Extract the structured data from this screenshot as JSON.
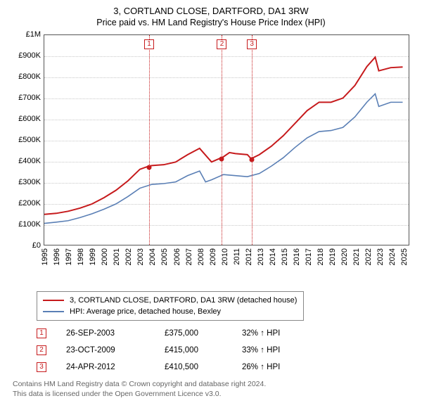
{
  "title": "3, CORTLAND CLOSE, DARTFORD, DA1 3RW",
  "subtitle": "Price paid vs. HM Land Registry's House Price Index (HPI)",
  "chart": {
    "type": "line",
    "xlim": [
      1995,
      2025.5
    ],
    "ylim": [
      0,
      1000000
    ],
    "yticks": [
      0,
      100000,
      200000,
      300000,
      400000,
      500000,
      600000,
      700000,
      800000,
      900000,
      1000000
    ],
    "ytick_labels": [
      "£0",
      "£100K",
      "£200K",
      "£300K",
      "£400K",
      "£500K",
      "£600K",
      "£700K",
      "£800K",
      "£900K",
      "£1M"
    ],
    "xticks": [
      1995,
      1996,
      1997,
      1998,
      1999,
      2000,
      2001,
      2002,
      2003,
      2004,
      2005,
      2006,
      2007,
      2008,
      2009,
      2010,
      2011,
      2012,
      2013,
      2014,
      2015,
      2016,
      2017,
      2018,
      2019,
      2020,
      2021,
      2022,
      2023,
      2024,
      2025
    ],
    "grid_color": "#c8c8c8",
    "border_color": "#555555",
    "background": "#ffffff",
    "series": [
      {
        "name": "price_line",
        "label": "3, CORTLAND CLOSE, DARTFORD, DA1 3RW (detached house)",
        "color": "#c61a1c",
        "width": 2,
        "points": [
          [
            1995,
            145000
          ],
          [
            1996,
            150000
          ],
          [
            1997,
            160000
          ],
          [
            1998,
            175000
          ],
          [
            1999,
            195000
          ],
          [
            2000,
            225000
          ],
          [
            2001,
            260000
          ],
          [
            2002,
            305000
          ],
          [
            2003,
            360000
          ],
          [
            2003.74,
            375000
          ],
          [
            2004,
            378000
          ],
          [
            2005,
            382000
          ],
          [
            2006,
            395000
          ],
          [
            2007,
            430000
          ],
          [
            2008,
            460000
          ],
          [
            2009,
            395000
          ],
          [
            2009.81,
            415000
          ],
          [
            2010,
            420000
          ],
          [
            2010.5,
            440000
          ],
          [
            2011,
            435000
          ],
          [
            2012,
            430000
          ],
          [
            2012.31,
            410500
          ],
          [
            2013,
            430000
          ],
          [
            2014,
            470000
          ],
          [
            2015,
            520000
          ],
          [
            2016,
            580000
          ],
          [
            2017,
            640000
          ],
          [
            2018,
            680000
          ],
          [
            2019,
            680000
          ],
          [
            2020,
            700000
          ],
          [
            2021,
            760000
          ],
          [
            2022,
            850000
          ],
          [
            2022.7,
            895000
          ],
          [
            2023,
            830000
          ],
          [
            2024,
            845000
          ],
          [
            2025,
            848000
          ]
        ]
      },
      {
        "name": "hpi_line",
        "label": "HPI: Average price, detached house, Bexley",
        "color": "#5a7fb5",
        "width": 1.6,
        "points": [
          [
            1995,
            102000
          ],
          [
            1996,
            108000
          ],
          [
            1997,
            115000
          ],
          [
            1998,
            130000
          ],
          [
            1999,
            148000
          ],
          [
            2000,
            170000
          ],
          [
            2001,
            195000
          ],
          [
            2002,
            230000
          ],
          [
            2003,
            270000
          ],
          [
            2004,
            288000
          ],
          [
            2005,
            292000
          ],
          [
            2006,
            300000
          ],
          [
            2007,
            330000
          ],
          [
            2008,
            352000
          ],
          [
            2008.5,
            300000
          ],
          [
            2009,
            310000
          ],
          [
            2010,
            335000
          ],
          [
            2011,
            330000
          ],
          [
            2012,
            325000
          ],
          [
            2013,
            340000
          ],
          [
            2014,
            375000
          ],
          [
            2015,
            415000
          ],
          [
            2016,
            465000
          ],
          [
            2017,
            510000
          ],
          [
            2018,
            540000
          ],
          [
            2019,
            545000
          ],
          [
            2020,
            560000
          ],
          [
            2021,
            610000
          ],
          [
            2022,
            680000
          ],
          [
            2022.7,
            720000
          ],
          [
            2023,
            660000
          ],
          [
            2024,
            680000
          ],
          [
            2025,
            680000
          ]
        ]
      }
    ],
    "markers": [
      {
        "idx": "1",
        "x": 2003.74,
        "y": 375000
      },
      {
        "idx": "2",
        "x": 2009.81,
        "y": 415000
      },
      {
        "idx": "3",
        "x": 2012.31,
        "y": 410500
      }
    ]
  },
  "legend": {
    "items": [
      {
        "color": "#c61a1c",
        "label": "3, CORTLAND CLOSE, DARTFORD, DA1 3RW (detached house)"
      },
      {
        "color": "#5a7fb5",
        "label": "HPI: Average price, detached house, Bexley"
      }
    ]
  },
  "transactions": [
    {
      "idx": "1",
      "date": "26-SEP-2003",
      "price": "£375,000",
      "hpi": "32% ↑ HPI"
    },
    {
      "idx": "2",
      "date": "23-OCT-2009",
      "price": "£415,000",
      "hpi": "33% ↑ HPI"
    },
    {
      "idx": "3",
      "date": "24-APR-2012",
      "price": "£410,500",
      "hpi": "26% ↑ HPI"
    }
  ],
  "footer": {
    "line1": "Contains HM Land Registry data © Crown copyright and database right 2024.",
    "line2": "This data is licensed under the Open Government Licence v3.0."
  }
}
